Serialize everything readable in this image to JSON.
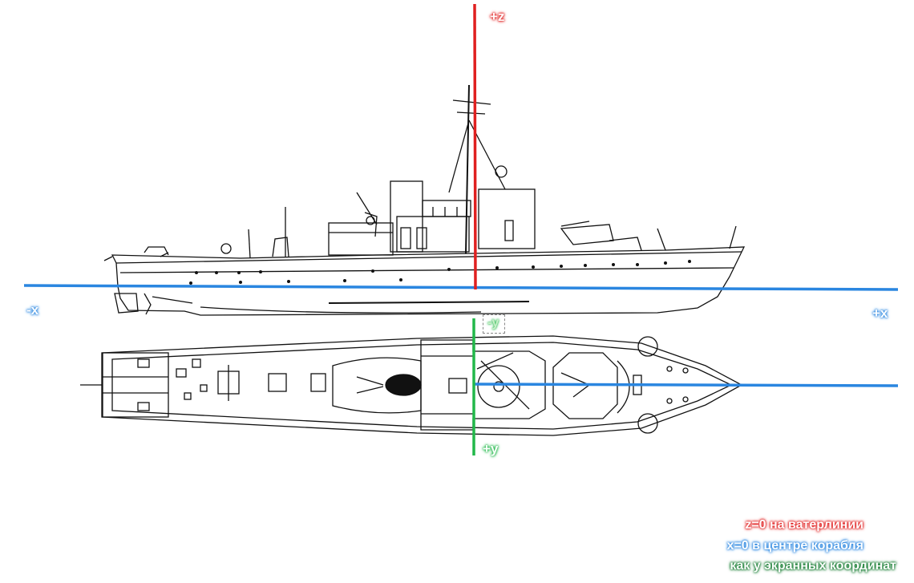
{
  "axes": {
    "z_positive": "+z",
    "x_negative": "-x",
    "x_positive": "+x",
    "y_negative": "-y",
    "y_positive": "+y"
  },
  "legend": {
    "z_note": "z=0 на ватерлинии",
    "x_note": "x=0 в центре корабля",
    "y_note": "как у экранных координат"
  },
  "colors": {
    "z_axis": "#e02020",
    "x_axis": "#2a86e0",
    "y_axis": "#22b84a",
    "drawing": "#111111"
  },
  "drawings": [
    "ship-side-profile",
    "ship-top-plan"
  ]
}
